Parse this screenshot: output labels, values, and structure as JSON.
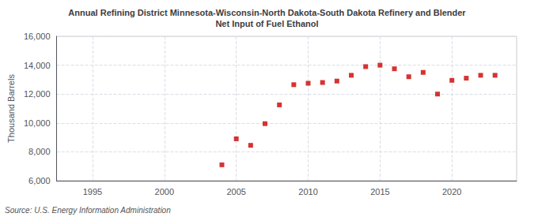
{
  "chart_data": {
    "type": "scatter",
    "title": "Annual Refining District Minnesota-Wisconsin-North Dakota-South Dakota Refinery and Blender\nNet Input of Fuel Ethanol",
    "ylabel": "Thousand Barrels",
    "source": "Source: U.S. Energy Information Administration",
    "x": [
      2004,
      2005,
      2006,
      2007,
      2008,
      2009,
      2010,
      2011,
      2012,
      2013,
      2014,
      2015,
      2016,
      2017,
      2018,
      2019,
      2020,
      2021,
      2022,
      2023
    ],
    "values": [
      7100,
      8900,
      8450,
      9950,
      11250,
      12650,
      12750,
      12800,
      12900,
      13300,
      13900,
      14000,
      13750,
      13200,
      13500,
      12000,
      12950,
      13100,
      13300,
      13300
    ],
    "color": "#cc0000",
    "marker": "square",
    "xlim": [
      1992.5,
      2024.5
    ],
    "xticks": [
      1995,
      2000,
      2005,
      2010,
      2015,
      2020
    ],
    "ylim": [
      6000,
      16000
    ],
    "yticks": [
      {
        "value": 6000,
        "label": "6,000"
      },
      {
        "value": 8000,
        "label": "8,000"
      },
      {
        "value": 10000,
        "label": "10,000"
      },
      {
        "value": 12000,
        "label": "12,000"
      },
      {
        "value": 14000,
        "label": "14,000"
      },
      {
        "value": 16000,
        "label": "16,000"
      }
    ],
    "grid": true
  }
}
